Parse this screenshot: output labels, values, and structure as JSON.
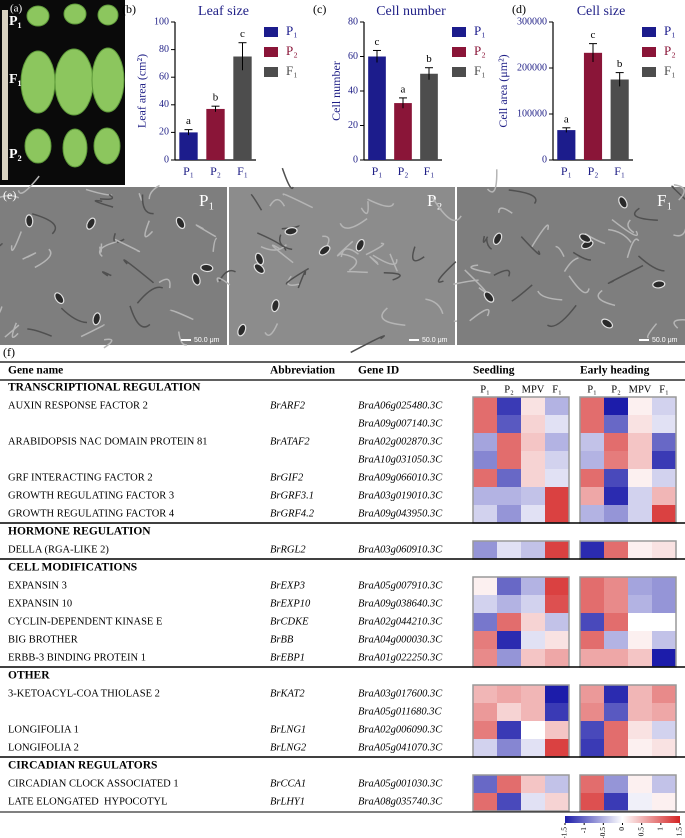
{
  "panel_a": {
    "label": "(a)",
    "rows": [
      "P₁",
      "F₁",
      "P₂"
    ]
  },
  "chart_data": [
    {
      "type": "bar",
      "panel_label": "(b)",
      "title": "Leaf size",
      "y_label": "Leaf area (cm²)",
      "categories": [
        "P₁",
        "P₂",
        "F₁"
      ],
      "colors": [
        "#1c1c8c",
        "#8a1538",
        "#4d4d4d"
      ],
      "values": [
        20,
        37,
        75
      ],
      "errors": [
        2,
        2,
        10
      ],
      "letters": [
        "a",
        "b",
        "c"
      ],
      "ylim": [
        0,
        100
      ],
      "yticks": [
        0,
        20,
        40,
        60,
        80,
        100
      ]
    },
    {
      "type": "bar",
      "panel_label": "(c)",
      "title": "Cell number",
      "y_label": "Cell number",
      "categories": [
        "P₁",
        "P₂",
        "F₁"
      ],
      "colors": [
        "#1c1c8c",
        "#8a1538",
        "#4d4d4d"
      ],
      "values": [
        60,
        33,
        50
      ],
      "errors": [
        3.5,
        3,
        3.5
      ],
      "letters": [
        "c",
        "a",
        "b"
      ],
      "ylim": [
        0,
        80
      ],
      "yticks": [
        0,
        20,
        40,
        60,
        80
      ]
    },
    {
      "type": "bar",
      "panel_label": "(d)",
      "title": "Cell size",
      "y_label": "Cell area (μm²)",
      "categories": [
        "P₁",
        "P₂",
        "F₁"
      ],
      "colors": [
        "#1c1c8c",
        "#8a1538",
        "#4d4d4d"
      ],
      "values": [
        65000,
        233000,
        175000
      ],
      "errors": [
        5000,
        20000,
        15000
      ],
      "letters": [
        "a",
        "c",
        "b"
      ],
      "ylim": [
        0,
        300000
      ],
      "yticks": [
        0,
        100000,
        200000,
        300000
      ]
    }
  ],
  "panel_e": {
    "label": "(e)",
    "images": [
      "P₁",
      "P₂",
      "F₁"
    ],
    "scale_bar": "50.0 μm"
  },
  "table": {
    "label": "(f)",
    "headers": [
      "Gene name",
      "Abbreviation",
      "Gene ID"
    ],
    "group_headers": [
      "Seedling",
      "Early heading"
    ],
    "sub_headers": [
      "P₁",
      "P₂",
      "MPV",
      "F₁"
    ],
    "sections": [
      {
        "title": "TRANSCRIPTIONAL REGULATION",
        "rows": [
          {
            "name": "AUXIN RESPONSE FACTOR 2",
            "abbr": "BrARF2",
            "gene_id": "BraA06g025480.3C",
            "seedling": [
              1.0,
              -1.3,
              0.2,
              -0.5
            ],
            "early_heading": [
              1.0,
              -1.5,
              0.1,
              -0.3
            ]
          },
          {
            "gene_id": "BraA09g007140.3C",
            "seedling": [
              1.0,
              -1.1,
              0.3,
              -0.2
            ],
            "early_heading": [
              1.0,
              -1.0,
              0.2,
              -0.2
            ]
          },
          {
            "name": "ARABIDOPSIS NAC DOMAIN PROTEIN 81",
            "abbr": "BrATAF2",
            "gene_id": "BraA02g002870.3C",
            "seedling": [
              -0.6,
              1.0,
              0.4,
              -0.5
            ],
            "early_heading": [
              -0.4,
              1.0,
              0.4,
              -1.0
            ]
          },
          {
            "gene_id": "BraA10g031050.3C",
            "seedling": [
              -0.8,
              1.0,
              0.3,
              -0.3
            ],
            "early_heading": [
              -0.5,
              0.9,
              0.4,
              -1.3
            ]
          },
          {
            "name": "GRF INTERACTING FACTOR 2",
            "abbr": "BrGIF2",
            "gene_id": "BraA09g066010.3C",
            "seedling": [
              1.0,
              -1.0,
              0.3,
              -0.2
            ],
            "early_heading": [
              1.0,
              -1.2,
              0.1,
              -0.3
            ]
          },
          {
            "name": "GROWTH REGULATING FACTOR 3",
            "abbr": "BrGRF3.1",
            "gene_id": "BraA03g019010.3C",
            "seedling": [
              -0.5,
              -0.5,
              -0.4,
              1.3
            ],
            "early_heading": [
              0.6,
              -1.4,
              -0.3,
              0.5
            ]
          },
          {
            "name": "GROWTH REGULATING FACTOR 4",
            "abbr": "BrGRF4.2",
            "gene_id": "BraA09g043950.3C",
            "seedling": [
              -0.3,
              -0.7,
              -0.2,
              1.3
            ],
            "early_heading": [
              -0.5,
              -0.7,
              -0.3,
              1.3
            ]
          }
        ]
      },
      {
        "title": "HORMONE REGULATION",
        "rows": [
          {
            "name": "DELLA (RGA-LIKE 2)",
            "abbr": "BrRGL2",
            "gene_id": "BraA03g060910.3C",
            "seedling": [
              -0.7,
              -0.2,
              -0.4,
              1.3
            ],
            "early_heading": [
              -1.4,
              1.0,
              0.1,
              0.2
            ]
          }
        ]
      },
      {
        "title": "CELL MODIFICATIONS",
        "rows": [
          {
            "name": "EXPANSIN 3",
            "abbr": "BrEXP3",
            "gene_id": "BraA05g007910.3C",
            "seedling": [
              0.1,
              -1.0,
              -0.5,
              1.3
            ],
            "early_heading": [
              1.0,
              0.8,
              -0.6,
              -0.7
            ]
          },
          {
            "name": "EXPANSIN 10",
            "abbr": "BrEXP10",
            "gene_id": "BraA09g038640.3C",
            "seedling": [
              -0.3,
              -0.5,
              -0.3,
              1.2
            ],
            "early_heading": [
              1.0,
              0.8,
              -0.5,
              -0.7
            ]
          },
          {
            "name": "CYCLIN-DEPENDENT KINASE E",
            "abbr": "BrCDKE",
            "gene_id": "BraA02g044210.3C",
            "seedling": [
              -0.9,
              1.0,
              0.3,
              -0.4
            ],
            "early_heading": [
              -1.2,
              1.0,
              0.0,
              0.0
            ]
          },
          {
            "name": "BIG BROTHER",
            "abbr": "BrBB",
            "gene_id": "BraA04g000030.3C",
            "seedling": [
              0.9,
              -1.4,
              -0.2,
              0.2
            ],
            "early_heading": [
              1.0,
              -0.5,
              0.1,
              -0.4
            ]
          },
          {
            "name": "ERBB-3 BINDING PROTEIN 1",
            "abbr": "BrEBP1",
            "gene_id": "BraA01g022250.3C",
            "seedling": [
              0.8,
              -0.7,
              0.4,
              0.6
            ],
            "early_heading": [
              0.6,
              0.6,
              0.4,
              -1.5
            ]
          }
        ]
      },
      {
        "title": "OTHER",
        "rows": [
          {
            "name": "3-KETOACYL-COA THIOLASE 2",
            "abbr": "BrKAT2",
            "gene_id": "BraA03g017600.3C",
            "seedling": [
              0.5,
              0.6,
              0.5,
              -1.5
            ],
            "early_heading": [
              0.7,
              -1.4,
              0.5,
              0.8
            ]
          },
          {
            "gene_id": "BraA05g011680.3C",
            "seedling": [
              0.7,
              0.3,
              0.5,
              -1.3
            ],
            "early_heading": [
              0.8,
              -1.1,
              0.5,
              0.6
            ]
          },
          {
            "name": "LONGIFOLIA 1",
            "abbr": "BrLNG1",
            "gene_id": "BraA02g006090.3C",
            "seedling": [
              0.9,
              -1.3,
              0.0,
              0.4
            ],
            "early_heading": [
              -1.2,
              1.0,
              0.2,
              -0.3
            ]
          },
          {
            "name": "LONGIFOLIA 2",
            "abbr": "BrLNG2",
            "gene_id": "BraA05g041070.3C",
            "seedling": [
              -0.3,
              -0.8,
              -0.2,
              1.3
            ],
            "early_heading": [
              -1.3,
              1.0,
              0.1,
              0.2
            ]
          }
        ]
      },
      {
        "title": "CIRCADIAN REGULATORS",
        "rows": [
          {
            "name": "CIRCADIAN CLOCK ASSOCIATED 1",
            "abbr": "BrCCA1",
            "gene_id": "BraA05g001030.3C",
            "seedling": [
              -1.0,
              1.0,
              0.4,
              -0.4
            ],
            "early_heading": [
              1.0,
              -0.7,
              0.1,
              -0.4
            ]
          },
          {
            "name": "LATE ELONGATED  HYPOCOTYL",
            "abbr": "BrLHY1",
            "gene_id": "BraA08g035740.3C",
            "seedling": [
              1.0,
              -1.2,
              -0.2,
              0.3
            ],
            "early_heading": [
              1.2,
              -1.3,
              -0.1,
              0.1
            ]
          }
        ]
      }
    ],
    "colorscale": {
      "range": [
        -1.5,
        1.5
      ],
      "ticks": [
        -1.5,
        -1,
        -0.5,
        0,
        0.5,
        1,
        1.5
      ],
      "low_color": "#1c1caa",
      "mid_color": "#ffffff",
      "high_color": "#d42424"
    }
  }
}
